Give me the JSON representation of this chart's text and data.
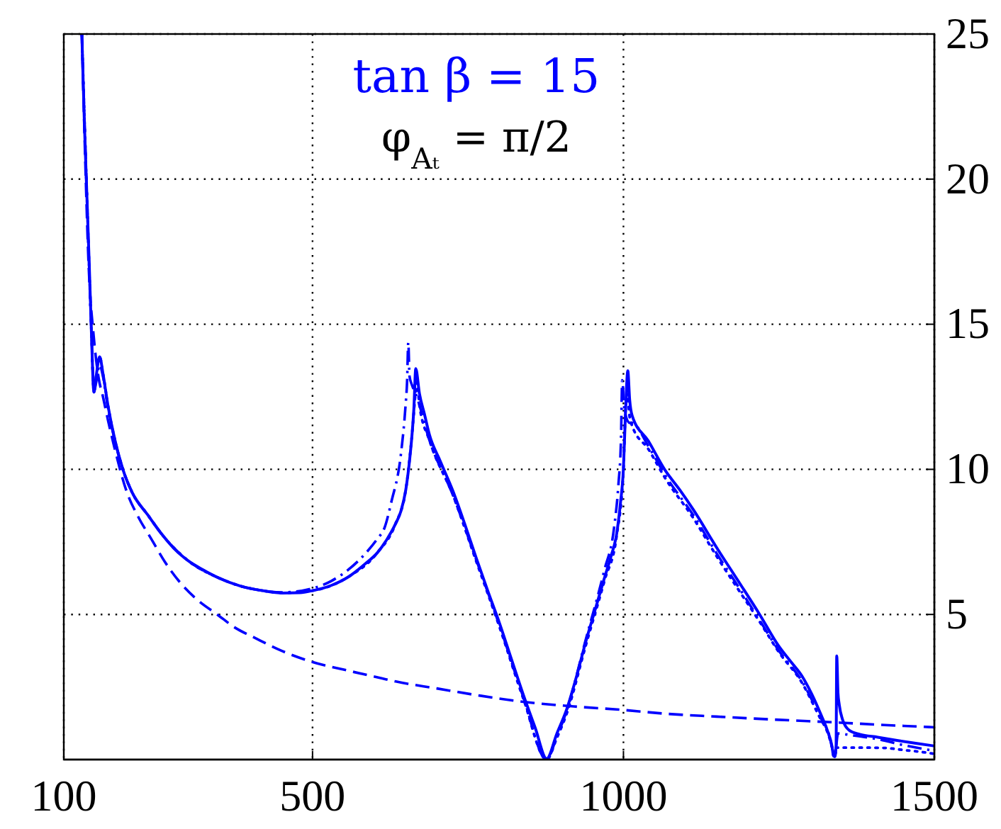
{
  "chart_data": {
    "type": "line",
    "xlim": [
      100,
      1500
    ],
    "xticks": [
      100,
      500,
      1000,
      1500
    ],
    "ylim": [
      0,
      25
    ],
    "yticks": [
      5,
      10,
      15,
      20,
      25
    ],
    "grid": true,
    "annotations": [
      "tan β = 15",
      "φ$_{Aₜ}$ = π/2"
    ],
    "series": [
      {
        "color": "#0000ff",
        "line_style": "solid",
        "x": [
          129,
          133,
          137,
          141,
          144,
          148.5,
          152,
          157.6,
          163,
          171,
          182,
          195,
          210,
          235,
          260,
          277,
          300,
          323,
          350,
          384,
          420,
          452,
          480,
          500,
          530,
          558,
          585,
          604,
          620,
          633,
          642,
          650,
          656,
          660,
          663,
          666,
          672,
          680,
          688,
          705,
          726,
          745,
          763,
          782,
          801,
          820,
          839,
          858,
          876.5,
          893,
          909,
          925,
          939,
          955,
          970,
          980,
          989,
          995,
          1000,
          1003.4,
          1007,
          1010,
          1014,
          1040,
          1067,
          1090,
          1113,
          1150,
          1185,
          1219,
          1250,
          1270,
          1287,
          1303,
          1317,
          1328,
          1335,
          1338,
          1340,
          1342,
          1343,
          1345,
          1347,
          1352,
          1363,
          1380,
          1409,
          1440,
          1470,
          1500
        ],
        "values": [
          25,
          22,
          19.5,
          17,
          15,
          12.66,
          13.2,
          13.88,
          13.3,
          12.2,
          11.03,
          10.0,
          9.2,
          8.43,
          7.7,
          7.28,
          6.85,
          6.55,
          6.25,
          5.98,
          5.82,
          5.74,
          5.75,
          5.82,
          6.0,
          6.3,
          6.75,
          7.12,
          7.6,
          8.1,
          8.55,
          9.3,
          10.3,
          11.2,
          12.1,
          13.47,
          12.6,
          11.9,
          11.19,
          10.3,
          9.24,
          8.1,
          6.96,
          5.8,
          4.68,
          3.45,
          2.23,
          1.1,
          0.03,
          0.9,
          1.75,
          2.9,
          4.03,
          5.2,
          6.3,
          7.0,
          7.77,
          8.8,
          10.05,
          12.0,
          13.4,
          12.4,
          11.85,
          10.98,
          9.97,
          9.31,
          8.59,
          7.3,
          6.14,
          5.0,
          3.9,
          3.35,
          2.88,
          2.25,
          1.58,
          1.0,
          0.5,
          0.12,
          0.1,
          0.5,
          3.57,
          2.3,
          1.9,
          1.4,
          1.01,
          0.87,
          0.77,
          0.66,
          0.56,
          0.47
        ]
      },
      {
        "color": "#0000ff",
        "line_style": "dashed",
        "x": [
          129,
          134,
          140,
          148,
          156,
          163,
          171,
          182,
          201,
          220,
          240.5,
          262,
          285.5,
          315,
          346.7,
          375,
          407.6,
          450,
          498.6,
          560,
          611,
          634,
          700,
          770,
          839,
          920,
          999,
          1067,
          1150,
          1250,
          1350,
          1420,
          1492,
          1500
        ],
        "values": [
          25,
          21,
          17,
          14.6,
          13.15,
          12.5,
          11.7,
          10.7,
          9.24,
          8.35,
          7.61,
          6.83,
          6.14,
          5.5,
          5.0,
          4.55,
          4.19,
          3.75,
          3.37,
          3.05,
          2.8,
          2.69,
          2.45,
          2.2,
          1.99,
          1.83,
          1.71,
          1.58,
          1.48,
          1.37,
          1.27,
          1.19,
          1.12,
          1.11
        ]
      },
      {
        "color": "#0000ff",
        "line_style": "dotted",
        "x": [
          129,
          137,
          144,
          148.5,
          152,
          157.6,
          163,
          171,
          182,
          195,
          210,
          235,
          260,
          300,
          350,
          384,
          420,
          452,
          500,
          558,
          604,
          633,
          650,
          660,
          666,
          668,
          672,
          688,
          726,
          763,
          801,
          839,
          876.5,
          893,
          909,
          939,
          970,
          989,
          1000,
          1003,
          1006,
          1010,
          1014,
          1040,
          1067,
          1113,
          1150,
          1185,
          1219,
          1250,
          1287,
          1317,
          1328,
          1335,
          1339,
          1342,
          1360,
          1390,
          1420,
          1450,
          1480,
          1500
        ],
        "values": [
          25,
          19.5,
          15,
          12.66,
          13.2,
          13.88,
          13.3,
          12.2,
          11.03,
          10.0,
          9.2,
          8.43,
          7.7,
          6.85,
          6.25,
          5.98,
          5.82,
          5.74,
          5.82,
          6.3,
          7.12,
          8.1,
          9.3,
          11.2,
          12.7,
          13.0,
          12.2,
          11.0,
          9.1,
          6.85,
          4.55,
          2.1,
          0.0,
          0.75,
          1.6,
          3.9,
          6.2,
          7.7,
          10.0,
          11.9,
          12.6,
          11.8,
          11.5,
          10.7,
          9.7,
          8.3,
          7.0,
          5.85,
          4.75,
          3.7,
          2.65,
          1.4,
          0.95,
          0.45,
          0.05,
          0.41,
          0.41,
          0.41,
          0.4,
          0.33,
          0.26,
          0.2
        ]
      },
      {
        "color": "#0000ff",
        "line_style": "dashdot",
        "x": [
          129,
          137,
          144,
          148.5,
          152,
          157.6,
          163,
          171,
          182,
          195,
          210,
          235,
          260,
          300,
          350,
          384,
          420,
          452,
          500,
          530,
          558,
          585,
          604,
          616,
          627,
          642,
          649.6,
          652,
          654,
          656,
          660,
          666,
          688,
          726,
          763,
          801,
          839,
          876.5,
          893,
          909,
          939,
          969,
          985,
          992,
          996,
          998,
          1002,
          1010,
          1014,
          1040,
          1067,
          1113,
          1150,
          1185,
          1219,
          1250,
          1287,
          1317,
          1330,
          1337,
          1340,
          1345,
          1363,
          1409,
          1450,
          1500
        ],
        "values": [
          25,
          19.5,
          15,
          12.66,
          13.0,
          13.6,
          13.2,
          12.1,
          11.0,
          10.0,
          9.2,
          8.43,
          7.7,
          6.85,
          6.25,
          5.98,
          5.82,
          5.76,
          5.9,
          6.15,
          6.55,
          7.1,
          7.6,
          8.0,
          8.9,
          10.5,
          12.2,
          13.0,
          14.37,
          13.2,
          12.9,
          12.6,
          11.0,
          9.1,
          6.9,
          4.6,
          2.15,
          0.0,
          0.8,
          1.7,
          4.1,
          6.5,
          8.0,
          9.5,
          11.0,
          13.07,
          12.0,
          11.6,
          11.6,
          10.8,
          9.8,
          8.4,
          7.1,
          5.95,
          4.8,
          3.75,
          2.7,
          1.45,
          0.9,
          0.3,
          0.1,
          0.9,
          0.85,
          0.7,
          0.5,
          0.3
        ]
      }
    ]
  }
}
